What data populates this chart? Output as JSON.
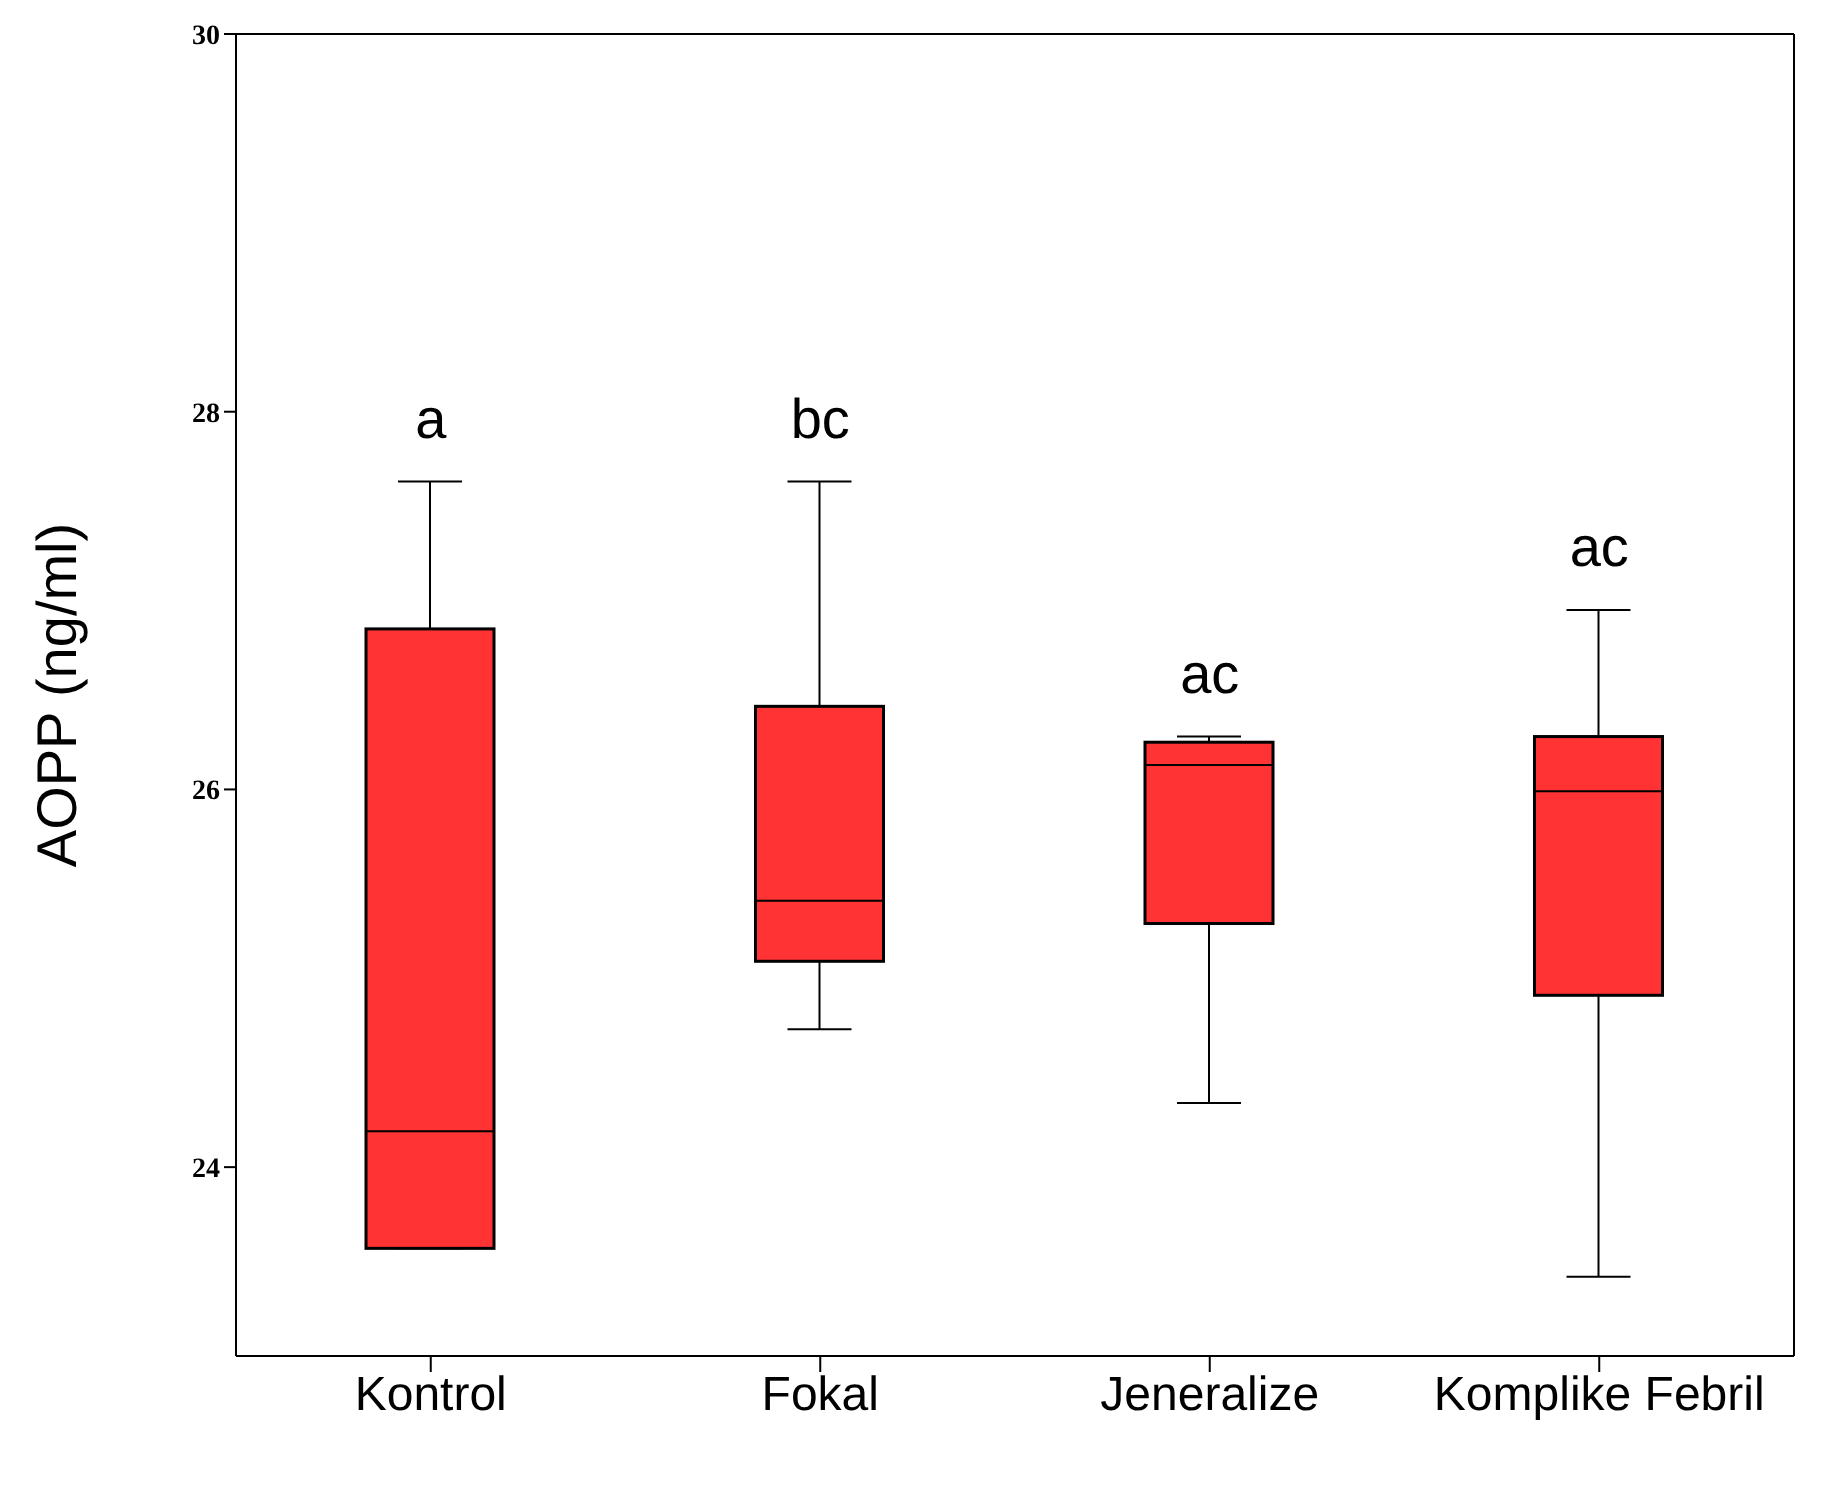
{
  "chart_data": {
    "type": "box",
    "ylabel": "AOPP (ng/ml)",
    "categories": [
      "Kontrol",
      "Fokal",
      "Jeneralize",
      "Komplike Febril"
    ],
    "color": "#ff3333",
    "boxes": [
      {
        "low": 23.57,
        "q1": 23.57,
        "median": 24.19,
        "q3": 26.85,
        "high": 27.63
      },
      {
        "low": 24.73,
        "q1": 25.09,
        "median": 25.41,
        "q3": 26.44,
        "high": 27.63
      },
      {
        "low": 24.34,
        "q1": 25.29,
        "median": 26.13,
        "q3": 26.25,
        "high": 26.28
      },
      {
        "low": 23.42,
        "q1": 24.91,
        "median": 25.99,
        "q3": 26.28,
        "high": 26.95
      }
    ],
    "ylim": [
      23,
      30
    ],
    "yticks": [
      24,
      26,
      28,
      30
    ],
    "grid": false,
    "annotations": [
      "a",
      "bc",
      "ac",
      "ac"
    ]
  }
}
